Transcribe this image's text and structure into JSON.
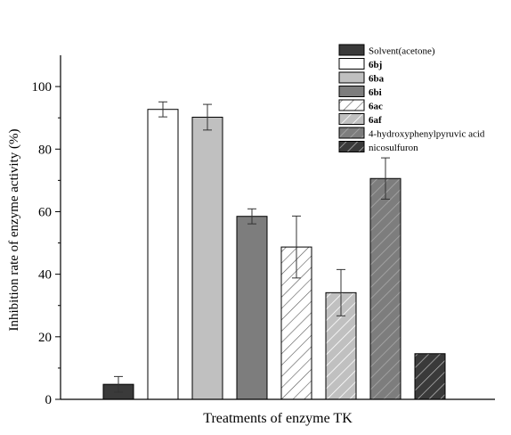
{
  "chart_data": {
    "type": "bar",
    "title": "",
    "xlabel": "Treatments of enzyme TK",
    "ylabel": "Inhibition rate of enzyme activity (%)",
    "ylim": [
      0,
      110
    ],
    "yticks": [
      0,
      20,
      40,
      60,
      80,
      100
    ],
    "grid": false,
    "legend_position": "top-right",
    "categories": [
      "Solvent(acetone)",
      "6bj",
      "6ba",
      "6bi",
      "6ac",
      "6af",
      "4-hydroxyphenylpyruvic acid",
      "nicosulfuron"
    ],
    "values": [
      4.8,
      92.7,
      90.2,
      58.5,
      48.7,
      34.1,
      70.6,
      14.6
    ],
    "errors": [
      2.5,
      2.4,
      4.1,
      2.4,
      9.9,
      7.4,
      6.6,
      0
    ],
    "bar_styles": [
      {
        "fill": "#3a3a3a",
        "pattern": "none"
      },
      {
        "fill": "#ffffff",
        "pattern": "none"
      },
      {
        "fill": "#c0c0c0",
        "pattern": "none"
      },
      {
        "fill": "#7d7d7d",
        "pattern": "none"
      },
      {
        "fill": "#ffffff",
        "pattern": "hatch"
      },
      {
        "fill": "#c0c0c0",
        "pattern": "hatch"
      },
      {
        "fill": "#7d7d7d",
        "pattern": "hatch"
      },
      {
        "fill": "#3a3a3a",
        "pattern": "hatch"
      }
    ],
    "legend_bold": [
      false,
      true,
      true,
      true,
      true,
      true,
      false,
      false
    ]
  }
}
